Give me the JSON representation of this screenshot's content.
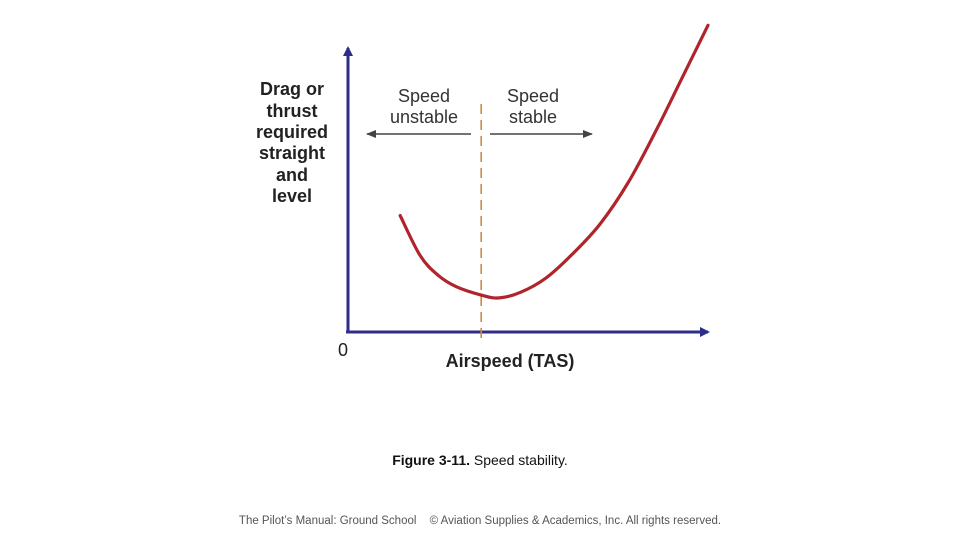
{
  "chart_data": {
    "type": "line",
    "title": "",
    "ylabel_lines": [
      "Drag or",
      "thrust",
      "required",
      "straight",
      "and",
      "level"
    ],
    "xlabel": "Airspeed (TAS)",
    "origin_label": "0",
    "xlim": [
      0,
      100
    ],
    "ylim": [
      0,
      100
    ],
    "series": [
      {
        "name": "Drag or thrust required",
        "x": [
          14.5,
          20,
          25,
          30,
          37,
          42,
          48,
          55,
          62,
          70,
          78,
          86,
          93,
          100
        ],
        "y": [
          41,
          27,
          20,
          16,
          13,
          12,
          14,
          19,
          27,
          38,
          53,
          72,
          90,
          108
        ]
      }
    ],
    "divider": {
      "x": 37,
      "label_left": [
        "Speed",
        "unstable"
      ],
      "label_right": [
        "Speed",
        "stable"
      ]
    },
    "colors": {
      "axis": "#2e2e8a",
      "curve": "#b0242c",
      "divider": "#d08a3a",
      "region_arrow": "#444444"
    }
  },
  "caption": {
    "figure": "Figure 3-11.",
    "text": " Speed stability."
  },
  "footer": {
    "left": "The Pilot’s Manual: Ground School",
    "right": "© Aviation Supplies & Academics, Inc. All rights reserved."
  }
}
